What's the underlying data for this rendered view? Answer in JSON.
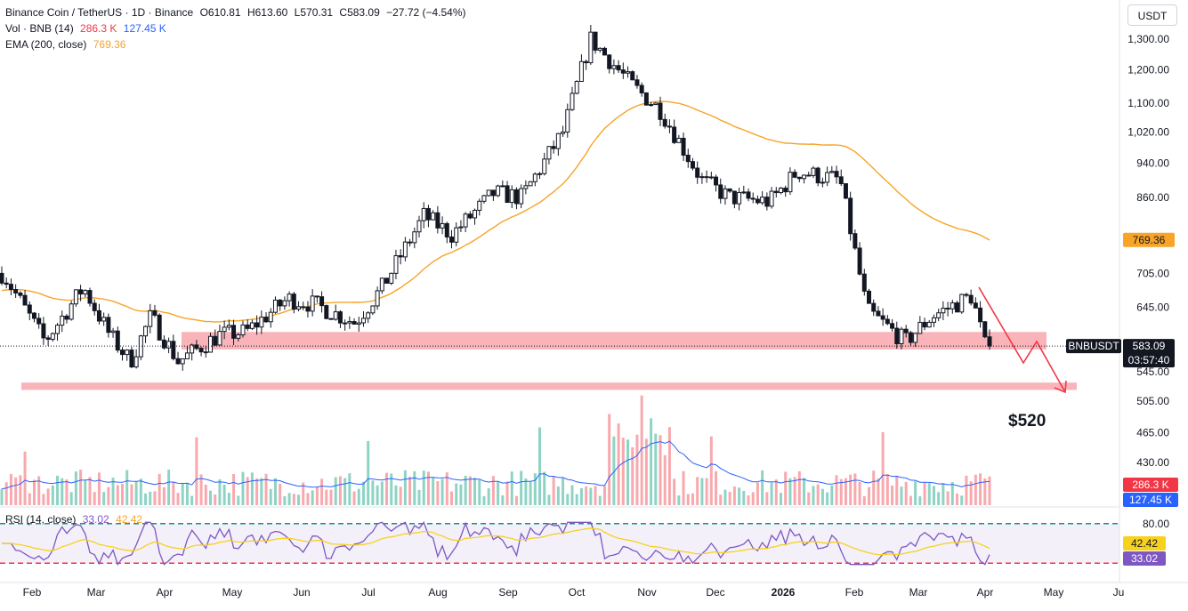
{
  "header": {
    "symbol_title": "Binance Coin / TetherUS · 1D · Binance",
    "open": "O610.81",
    "high": "H613.60",
    "low": "L570.31",
    "close": "C583.09",
    "change": "−27.72 (−4.54%)",
    "vol_label": "Vol · BNB (14)",
    "vol_value1": "286.3 K",
    "vol_value2": "127.45 K",
    "ema_label": "EMA (200, close)",
    "ema_value": "769.36"
  },
  "currency_button": "USDT",
  "rsi_legend": {
    "label": "RSI (14, close)",
    "value1": "33.02",
    "value2": "42.42"
  },
  "price_badges": {
    "ema": "769.36",
    "symbol": "BNBUSDT",
    "last": "583.09",
    "countdown": "03:57:40",
    "vol1": "286.3 K",
    "vol2": "127.45 K",
    "rsi1": "42.42",
    "rsi2": "33.02"
  },
  "annotation": {
    "target": "$520"
  },
  "colors": {
    "up": "#089981",
    "down": "#f23645",
    "candle": "#131722",
    "ema": "#f7a428",
    "zone": "#f7a1a8",
    "arrow": "#f23645",
    "vol_ma": "#2962ff",
    "rsi": "#7e57c2",
    "rsi_ma": "#f7d11c",
    "rsi_upper": "#089981",
    "rsi_lower": "#f23645",
    "vol2_badge": "#2962ff",
    "rsi2_badge": "#7e57c2"
  },
  "chart_data": {
    "type": "candlestick",
    "title": "Binance Coin / TetherUS · 1D · Binance",
    "x_ticks": [
      "Feb",
      "Mar",
      "Apr",
      "May",
      "Jun",
      "Jul",
      "Aug",
      "Sep",
      "Oct",
      "Nov",
      "Dec",
      "2026",
      "Feb",
      "Mar",
      "Apr",
      "May",
      "Ju"
    ],
    "y_ticks": [
      1300,
      1200,
      1100,
      1020,
      940,
      860,
      705,
      645,
      545,
      505,
      465,
      430
    ],
    "y_tick_labels": [
      "1,300.00",
      "1,200.00",
      "1,100.00",
      "1,020.00",
      "940.00",
      "860.00",
      "705.00",
      "645.00",
      "545.00",
      "505.00",
      "465.00",
      "430.00"
    ],
    "y_scale": "log",
    "price_path": [
      {
        "t": "Jan",
        "v": 705
      },
      {
        "t": "Feb",
        "v": 590
      },
      {
        "t": "Feb",
        "v": 680
      },
      {
        "t": "Mar",
        "v": 600
      },
      {
        "t": "Mar",
        "v": 560
      },
      {
        "t": "Mar",
        "v": 630
      },
      {
        "t": "Apr",
        "v": 560
      },
      {
        "t": "Apr",
        "v": 600
      },
      {
        "t": "May",
        "v": 605
      },
      {
        "t": "May",
        "v": 660
      },
      {
        "t": "Jun",
        "v": 650
      },
      {
        "t": "Jun",
        "v": 620
      },
      {
        "t": "Jul",
        "v": 680
      },
      {
        "t": "Jul",
        "v": 820
      },
      {
        "t": "Aug",
        "v": 780
      },
      {
        "t": "Aug",
        "v": 870
      },
      {
        "t": "Sep",
        "v": 860
      },
      {
        "t": "Sep",
        "v": 1020
      },
      {
        "t": "Oct",
        "v": 1300
      },
      {
        "t": "Oct",
        "v": 1150
      },
      {
        "t": "Nov",
        "v": 1080
      },
      {
        "t": "Nov",
        "v": 900
      },
      {
        "t": "Dec",
        "v": 860
      },
      {
        "t": "Dec",
        "v": 850
      },
      {
        "t": "Jan",
        "v": 920
      },
      {
        "t": "Jan",
        "v": 900
      },
      {
        "t": "Feb",
        "v": 640
      },
      {
        "t": "Feb",
        "v": 590
      },
      {
        "t": "Mar",
        "v": 630
      },
      {
        "t": "Mar",
        "v": 665
      },
      {
        "t": "Apr",
        "v": 583
      }
    ],
    "ema_200_last": 769.36,
    "last_close": 583.09,
    "zones": [
      {
        "from": 578,
        "to": 605
      },
      {
        "from": 520,
        "to": 530
      }
    ],
    "projection_target": 520,
    "volume": {
      "last": 286300,
      "ma": 127450
    },
    "rsi": {
      "last": 33.02,
      "ma": 42.42,
      "upper": 80,
      "lower": 20
    }
  }
}
